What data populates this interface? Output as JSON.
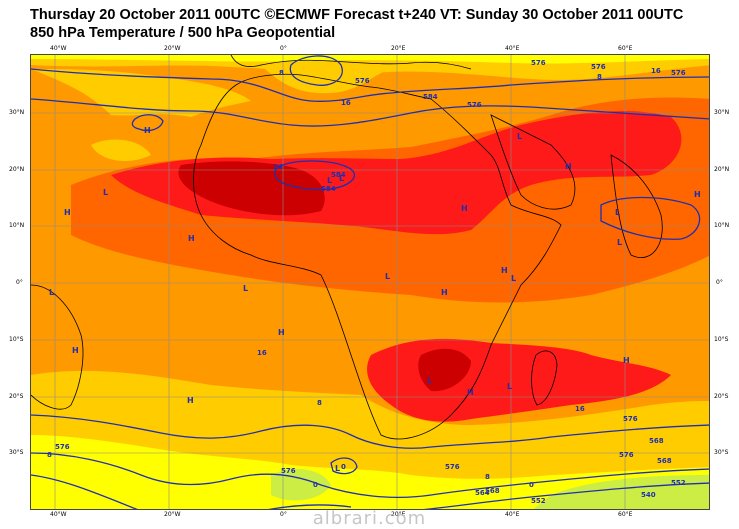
{
  "title_line1": "Thursday 20 October 2011 00UTC ©ECMWF Forecast t+240 VT: Sunday 30 October 2011 00UTC",
  "title_line2": "850 hPa Temperature / 500 hPa Geopotential",
  "watermark": "albrari.com",
  "lon_labels": [
    "40°W",
    "20°W",
    "0°",
    "20°E",
    "40°E",
    "60°E"
  ],
  "lat_labels": [
    "30°N",
    "20°N",
    "10°N",
    "0°",
    "10°S",
    "20°S",
    "30°S"
  ],
  "pressure_centers": [
    "H",
    "H",
    "H",
    "H",
    "H",
    "H",
    "H",
    "H",
    "H",
    "H",
    "H",
    "H",
    "H",
    "L",
    "L",
    "L",
    "L",
    "L",
    "L",
    "L",
    "L",
    "L",
    "L",
    "L",
    "L",
    "L"
  ],
  "contour_labels": [
    "8",
    "16",
    "576",
    "8",
    "24",
    "576",
    "576",
    "576",
    "584",
    "584",
    "16",
    "576",
    "8",
    "8",
    "576",
    "16",
    "576",
    "568",
    "576",
    "568",
    "8",
    "0",
    "0",
    "564",
    "552",
    "540",
    "552",
    "0",
    "576",
    "16",
    "584",
    "576",
    "568"
  ],
  "colors": {
    "temp_lt0": "#ccee44",
    "temp_0_8": "#ffff00",
    "temp_8_16": "#ffcc00",
    "temp_16_20": "#ff9900",
    "temp_20_24": "#ff6600",
    "temp_24_28": "#ff1a1a",
    "temp_gt28": "#cc0000",
    "contour": "#1f2fb0",
    "coast": "#000000"
  }
}
